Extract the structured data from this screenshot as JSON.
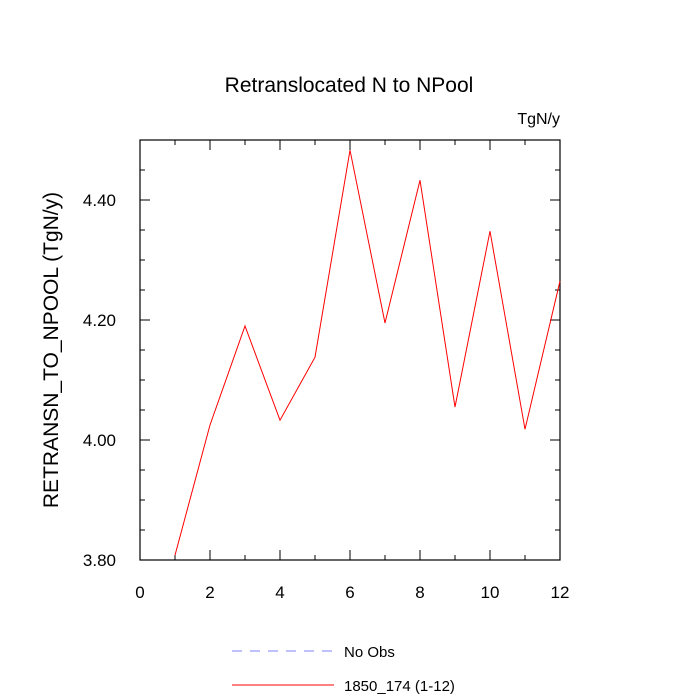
{
  "chart_data": {
    "type": "line",
    "title": "Retranslocated N to NPool",
    "units_label": "TgN/y",
    "xlabel": "",
    "ylabel": "RETRANSN_TO_NPOOL  (TgN/y)",
    "xlim": [
      0,
      12
    ],
    "ylim": [
      3.8,
      4.5
    ],
    "x_ticks": [
      0,
      2,
      4,
      6,
      8,
      10,
      12
    ],
    "y_ticks": [
      3.8,
      4.0,
      4.2,
      4.4
    ],
    "y_tick_labels": [
      "3.80",
      "4.00",
      "4.20",
      "4.40"
    ],
    "x_minor_step": 1,
    "y_minor_step": 0.05,
    "grid": false,
    "legend_position": "bottom-center",
    "series": [
      {
        "name": "No Obs",
        "color": "#8080ff",
        "style": "dashed",
        "x": [],
        "values": []
      },
      {
        "name": "1850_174 (1-12)",
        "color": "#ff0000",
        "style": "solid",
        "x": [
          1,
          2,
          3,
          4,
          5,
          6,
          7,
          8,
          9,
          10,
          11,
          12
        ],
        "values": [
          3.808,
          4.025,
          4.19,
          4.033,
          4.138,
          4.483,
          4.195,
          4.433,
          4.055,
          4.348,
          4.018,
          4.265
        ]
      }
    ]
  }
}
